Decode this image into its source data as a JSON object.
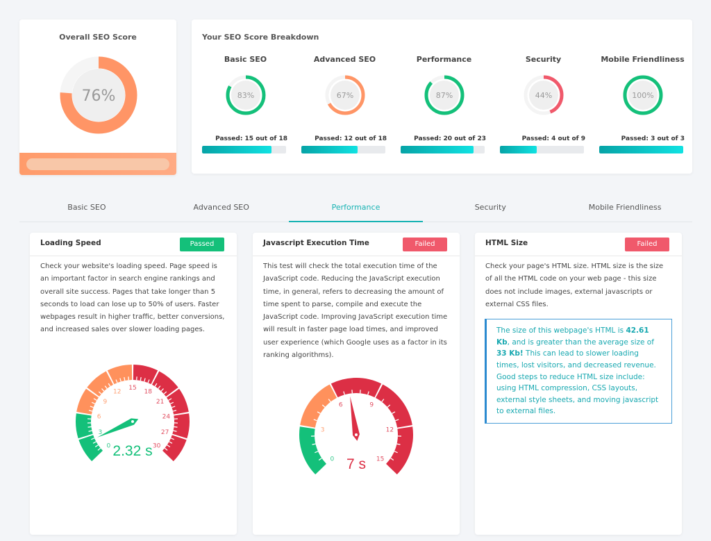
{
  "overall": {
    "title": "Overall SEO Score",
    "value": 76,
    "label": "76%",
    "color": "#ff9566"
  },
  "breakdown": {
    "title": "Your SEO Score Breakdown",
    "items": [
      {
        "name": "Basic SEO",
        "value": 83,
        "label": "83%",
        "color": "#14c07a",
        "passed": "Passed: 15 out of 18",
        "progress": 83
      },
      {
        "name": "Advanced SEO",
        "value": 67,
        "label": "67%",
        "color": "#ff9566",
        "passed": "Passed: 12 out of 18",
        "progress": 67
      },
      {
        "name": "Performance",
        "value": 87,
        "label": "87%",
        "color": "#14c07a",
        "passed": "Passed: 20 out of 23",
        "progress": 87
      },
      {
        "name": "Security",
        "value": 44,
        "label": "44%",
        "color": "#f0596b",
        "passed": "Passed: 4 out of 9",
        "progress": 44
      },
      {
        "name": "Mobile Friendliness",
        "value": 100,
        "label": "100%",
        "color": "#14c07a",
        "passed": "Passed: 3 out of 3",
        "progress": 100
      }
    ]
  },
  "tabs": [
    "Basic SEO",
    "Advanced SEO",
    "Performance",
    "Security",
    "Mobile Friendliness"
  ],
  "active_tab": 2,
  "tests": [
    {
      "title": "Loading Speed",
      "status": "Passed",
      "desc": "Check your website's loading speed. Page speed is an important factor in search engine rankings and overall site success. Pages that take longer than 5 seconds to load can lose up to 50% of users. Faster webpages result in higher traffic, better conversions, and increased sales over slower loading pages.",
      "gauge": {
        "min": 0,
        "max": 30,
        "step": 3,
        "value": 2.32,
        "label": "2.32 s",
        "ticks": [
          "0",
          "3",
          "6",
          "9",
          "12",
          "15",
          "18",
          "21",
          "24",
          "27",
          "30"
        ],
        "green_to": 6,
        "orange_to": 15
      }
    },
    {
      "title": "Javascript Execution Time",
      "status": "Failed",
      "desc": "This test will check the total execution time of the JavaScript code. Reducing the JavaScript execution time, in general, refers to decreasing the amount of time spent to parse, compile and execute the JavaScript code. Improving JavaScript execution time will result in faster page load times, and improved user experience (which Google uses as a factor in its ranking algorithms).",
      "gauge": {
        "min": 0,
        "max": 15,
        "step": 3,
        "value": 7,
        "label": "7 s",
        "ticks": [
          "0",
          "3",
          "6",
          "9",
          "12",
          "15"
        ],
        "green_to": 3,
        "orange_to": 6
      }
    },
    {
      "title": "HTML Size",
      "status": "Failed",
      "desc": "Check your page's HTML size. HTML size is the size of all the HTML code on your web page - this size does not include images, external javascripts or external CSS files.",
      "note": {
        "p1": "The size of this webpage's HTML is ",
        "size": "42.61 Kb",
        "p2": ", and is greater than the average size of ",
        "avg": "33 Kb!",
        "p3": " This can lead to slower loading times, lost visitors, and decreased revenue. Good steps to reduce HTML size include: using HTML compression, CSS layouts, external style sheets, and moving javascript to external files."
      }
    }
  ],
  "colors": {
    "green": "#14c07a",
    "orange": "#ff915c",
    "red": "#dc2f45",
    "teal": "#17b3b3"
  }
}
